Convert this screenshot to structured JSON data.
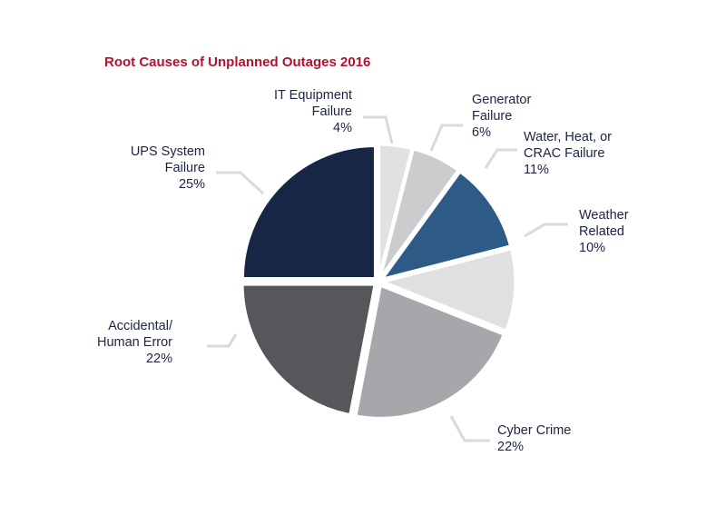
{
  "chart_data": {
    "type": "pie",
    "title": "Root Causes of Unplanned Outages 2016",
    "slices": [
      {
        "label": "IT Equipment Failure",
        "value": 4,
        "pct_label": "4%",
        "color": "#e0e1e3"
      },
      {
        "label": "Generator Failure",
        "value": 6,
        "pct_label": "6%",
        "color": "#cbccce"
      },
      {
        "label": "Water, Heat, or CRAC Failure",
        "value": 11,
        "pct_label": "11%",
        "color": "#2e5a86"
      },
      {
        "label": "Weather Related",
        "value": 10,
        "pct_label": "10%",
        "color": "#dfe0e2"
      },
      {
        "label": "Cyber Crime",
        "value": 22,
        "pct_label": "22%",
        "color": "#a6a7aa"
      },
      {
        "label": "Accidental/ Human Error",
        "value": 22,
        "pct_label": "22%",
        "color": "#55575b"
      },
      {
        "label": "UPS System Failure",
        "value": 25,
        "pct_label": "25%",
        "color": "#172644"
      }
    ]
  },
  "labels": {
    "it": [
      "IT Equipment",
      "Failure",
      "4%"
    ],
    "gen": [
      "Generator",
      "Failure",
      "6%"
    ],
    "water": [
      "Water, Heat, or",
      "CRAC Failure",
      "11%"
    ],
    "weather": [
      "Weather",
      "Related",
      "10%"
    ],
    "cyber": [
      "Cyber Crime",
      "22%"
    ],
    "acc": [
      "Accidental/",
      "Human Error",
      "22%"
    ],
    "ups": [
      "UPS System",
      "Failure",
      "25%"
    ]
  }
}
